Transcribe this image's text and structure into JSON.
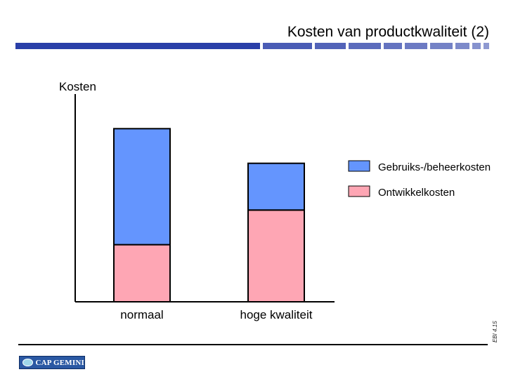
{
  "slide": {
    "title": "Kosten van productkwaliteit (2)",
    "slide_id": "EBI 4.15",
    "logo_text": "CAP GEMINI"
  },
  "colors": {
    "accent": "#2a3fa8",
    "series_usage": "#6495fe",
    "series_development": "#fea6b4"
  },
  "chart_data": {
    "type": "bar",
    "stacked": true,
    "ylabel": "Kosten",
    "categories": [
      "normaal",
      "hoge kwaliteit"
    ],
    "series": [
      {
        "name": "Ontwikkelkosten",
        "color": "#fea6b4",
        "values": [
          33,
          53
        ]
      },
      {
        "name": "Gebruiks-/beheerkosten",
        "color": "#6495fe",
        "values": [
          67,
          27
        ]
      }
    ],
    "ylim": [
      0,
      120
    ],
    "grid": false,
    "legend": "right"
  }
}
